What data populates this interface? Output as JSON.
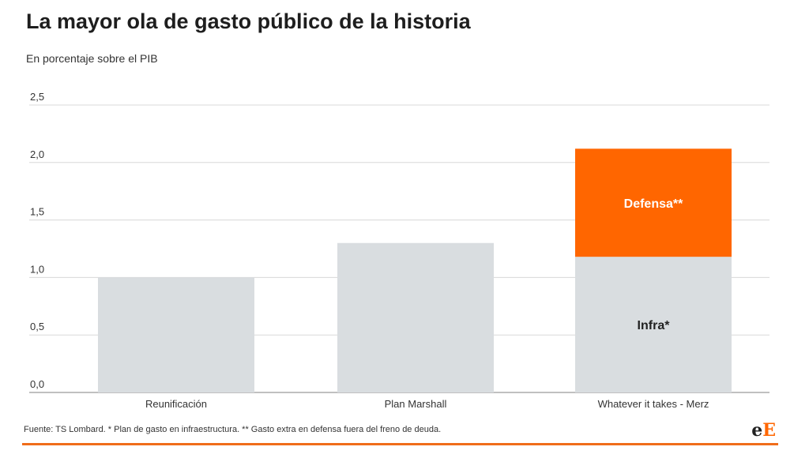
{
  "header": {
    "title": "La mayor ola de gasto público de la historia",
    "subtitle": "En porcentaje sobre el PIB"
  },
  "chart_data": {
    "type": "bar",
    "stacked": true,
    "categories": [
      "Reunificación",
      "Plan Marshall",
      "Whatever it takes - Merz"
    ],
    "series": [
      {
        "name": "Infra*",
        "values": [
          1.0,
          1.3,
          1.18
        ],
        "color": "#d9dde0"
      },
      {
        "name": "Defensa**",
        "values": [
          0,
          0,
          0.94
        ],
        "color": "#ff6600"
      }
    ],
    "segment_labels": [
      {
        "text": "Infra*",
        "category_index": 2,
        "series_index": 0,
        "color": "#222222"
      },
      {
        "text": "Defensa**",
        "category_index": 2,
        "series_index": 1,
        "color": "#ffffff"
      }
    ],
    "yticks": [
      "0,0",
      "0,5",
      "1,0",
      "1,5",
      "2,0",
      "2,5"
    ],
    "ylim": [
      0,
      2.5
    ],
    "grid": true,
    "legend": "none",
    "title": "La mayor ola de gasto público de la historia",
    "subtitle": "En porcentaje sobre el PIB",
    "xlabel": "",
    "ylabel": ""
  },
  "footer": {
    "note": "Fuente: TS Lombard. * Plan de gasto en infraestructura. ** Gasto extra en defensa fuera del freno de deuda.",
    "logo_part1": "e",
    "logo_part2": "E",
    "accent_color": "#f06d1a"
  }
}
